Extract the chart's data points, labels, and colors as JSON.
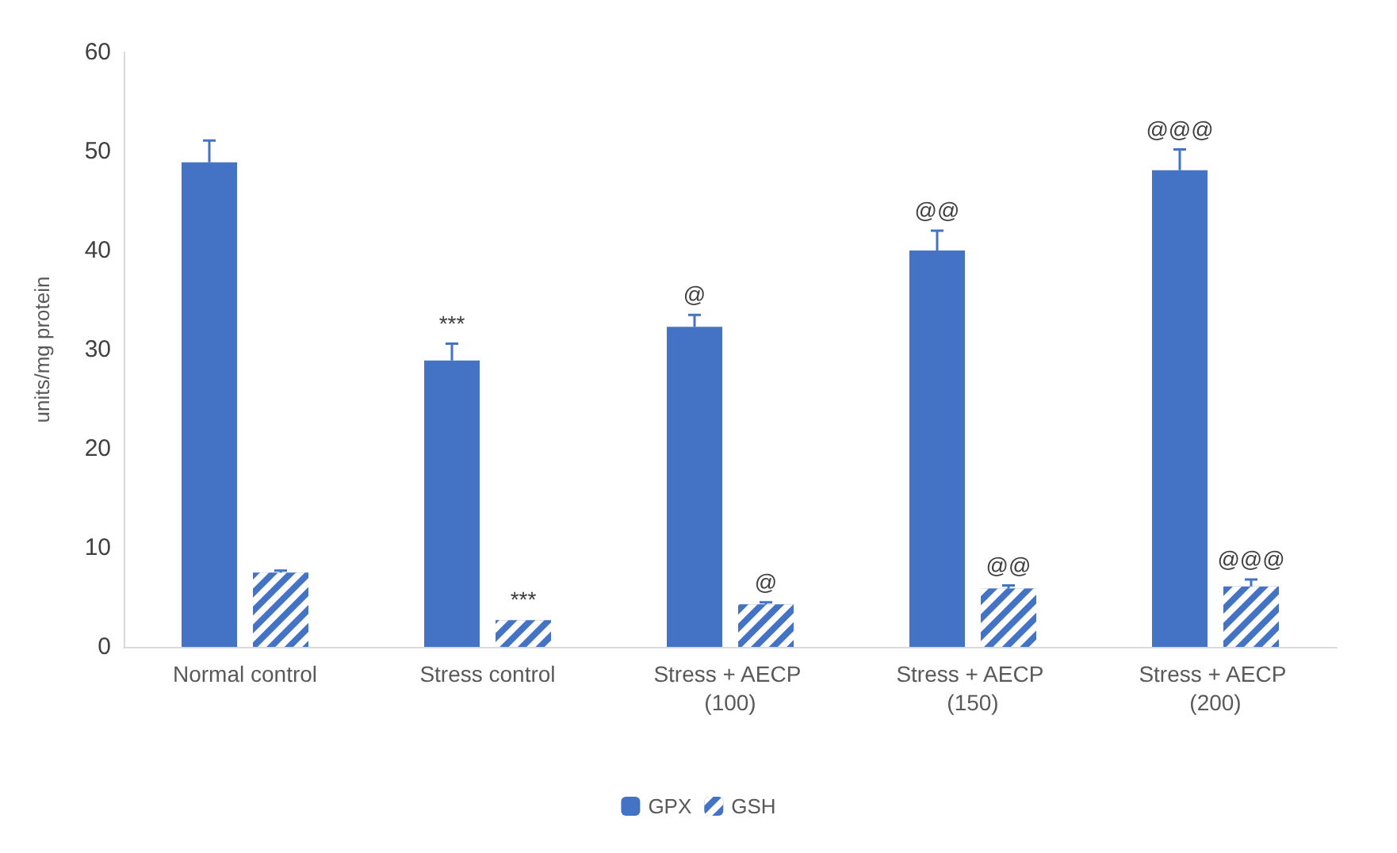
{
  "chart_data": {
    "type": "bar",
    "ylabel": "units/mg protein",
    "categories": [
      "Normal control",
      "Stress control",
      "Stress + AECP (100)",
      "Stress + AECP (150)",
      "Stress + AECP (200)"
    ],
    "series": [
      {
        "name": "GPX",
        "color": "#4472c4",
        "values": [
          48.9,
          28.9,
          32.3,
          40,
          48.1
        ],
        "errors": [
          2.2,
          1.7,
          1.2,
          2,
          2.1
        ]
      },
      {
        "name": "GSH",
        "color": "#4472c4",
        "values": [
          7.5,
          2.7,
          4.3,
          5.9,
          6.1
        ],
        "errors": [
          0.2,
          null,
          0.2,
          0.3,
          0.7
        ]
      }
    ],
    "ylim": [
      0,
      60
    ],
    "yticks": [
      0,
      10,
      20,
      30,
      40,
      50,
      60
    ],
    "grid": false,
    "legend": "bottom",
    "annotations": [
      {
        "text": "***",
        "x": "Stress control",
        "y": 28.9
      },
      {
        "text": "***",
        "x": "Stress control",
        "y": 2.7
      },
      {
        "text": "@",
        "x": "Stress + AECP (100)",
        "y": 32.3
      },
      {
        "text": "@",
        "x": "Stress + AECP (100)",
        "y": 4.3
      },
      {
        "text": "@@",
        "x": "Stress + AECP (150)",
        "y": 40
      },
      {
        "text": "@@",
        "x": "Stress + AECP (150)",
        "y": 5.9
      },
      {
        "text": "@@@",
        "x": "Stress + AECP (200)",
        "y": 48.1
      },
      {
        "text": "@@@",
        "x": "Stress + AECP (200)",
        "y": 6.1
      }
    ]
  }
}
